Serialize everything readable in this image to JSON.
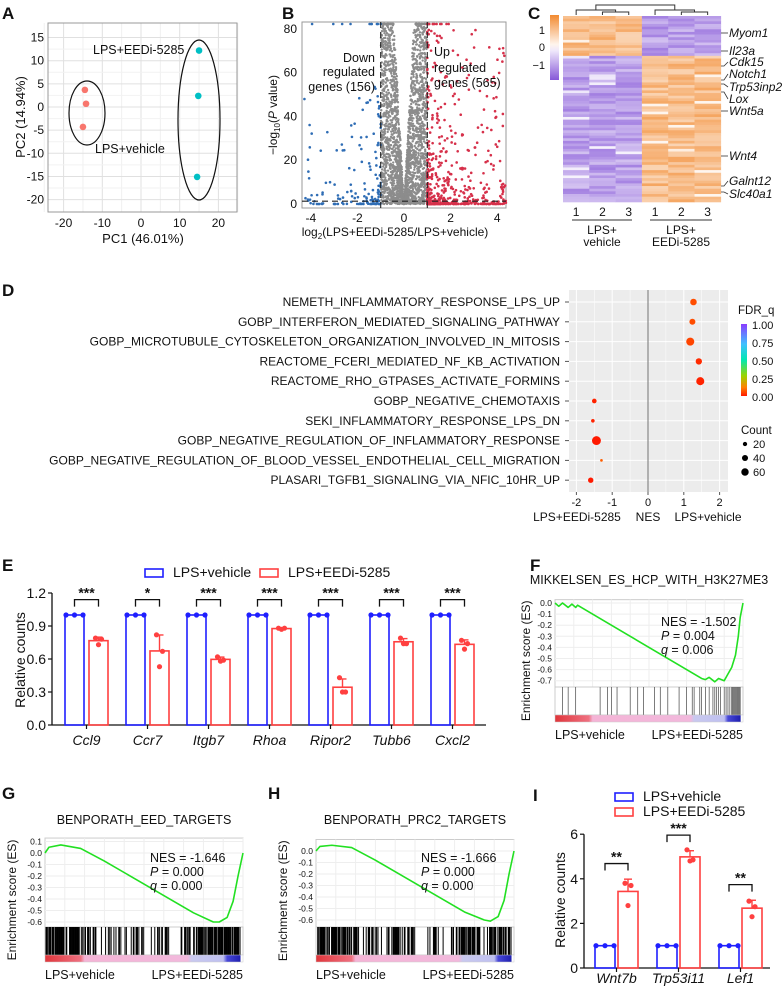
{
  "figure": {
    "panel_letters": [
      "A",
      "B",
      "C",
      "D",
      "E",
      "F",
      "G",
      "H",
      "I"
    ]
  },
  "chart_data": [
    {
      "panel": "A",
      "type": "scatter",
      "title": "",
      "xlabel": "PC1 (46.01%)",
      "ylabel": "PC2 (14.94%)",
      "xlim": [
        -25,
        25
      ],
      "ylim": [
        -22,
        18
      ],
      "xticks": [
        "-20",
        "-10",
        "0",
        "10",
        "20"
      ],
      "xtick_values": [
        -20,
        -10,
        0,
        10,
        20
      ],
      "yticks": [
        "15",
        "10",
        "5",
        "0",
        "-5",
        "-10",
        "-15",
        "-20"
      ],
      "ytick_values": [
        15,
        10,
        5,
        0,
        -5,
        -10,
        -15,
        -20
      ],
      "grid": true,
      "series": [
        {
          "name": "LPS+vehicle",
          "color": "#f8766d",
          "points": [
            [
              -14.5,
              3.7
            ],
            [
              -14.2,
              0.7
            ],
            [
              -15.0,
              -4.3
            ]
          ]
        },
        {
          "name": "LPS+EEDi-5285",
          "color": "#00bfc4",
          "points": [
            [
              15.0,
              12.2
            ],
            [
              14.8,
              2.4
            ],
            [
              14.5,
              -15.1
            ]
          ]
        }
      ]
    },
    {
      "panel": "B",
      "type": "scatter",
      "subtype": "volcano",
      "xlabel": {
        "pre": "log",
        "sub": "2",
        "post": "(LPS+EEDi-5285/LPS+vehicle)"
      },
      "ylabel": {
        "pre": "−log",
        "sub": "10",
        "open": "(",
        "p": "P",
        "post": " value)"
      },
      "xlim": [
        -4.4,
        4.4
      ],
      "ylim": [
        -2,
        83
      ],
      "xticks": [
        "-4",
        "-2",
        "0",
        "2",
        "4"
      ],
      "xtick_values": [
        -4,
        -2,
        0,
        2,
        4
      ],
      "yticks": [
        "0",
        "20",
        "40",
        "60",
        "80"
      ],
      "ytick_values": [
        0,
        20,
        40,
        60,
        80
      ],
      "fold_change_threshold": 1,
      "p_threshold_log10": 1.3,
      "down": {
        "lines": [
          "Down",
          "regulated",
          "genes (156)"
        ],
        "count": 156,
        "color": "#2f6db5"
      },
      "up": {
        "lines": [
          "Up",
          "regulated",
          "genes (565)"
        ],
        "count": 565,
        "color": "#d6304a"
      },
      "ns_color": "#8c8c8c"
    },
    {
      "panel": "C",
      "type": "heatmap",
      "colorbar_ticks": [
        "1",
        "0",
        "−1"
      ],
      "colorbar_values": [
        1,
        0,
        -1
      ],
      "columns": [
        "1",
        "2",
        "3",
        "1",
        "2",
        "3"
      ],
      "groups": [
        [
          "LPS+",
          "vehicle"
        ],
        [
          "LPS+",
          "EEDi-5285"
        ]
      ],
      "genes": [
        "Myom1",
        "Il23a",
        "Cdk15",
        "Notch1",
        "Trp53inp2",
        "Lox",
        "Wnt5a",
        "Wnt4",
        "Galnt12",
        "Slc40a1"
      ],
      "high_color": "#f28a30",
      "low_color": "#8657d8"
    },
    {
      "panel": "D",
      "type": "scatter",
      "subtype": "dotplot",
      "xlim": [
        -2.2,
        2.2
      ],
      "xticks": [
        "-2",
        "-1",
        "0",
        "1",
        "2"
      ],
      "xtick_values": [
        -2,
        -1,
        0,
        1,
        2
      ],
      "xlabel": {
        "left": "LPS+EEDi-5285",
        "center": "NES",
        "right": "LPS+vehicle"
      },
      "pathways": [
        {
          "name": "NEMETH_INFLAMMATORY_RESPONSE_LPS_UP",
          "nes": 1.27,
          "fdr_q": 0.06,
          "count": 30
        },
        {
          "name": "GOBP_INTERFERON_MEDIATED_SIGNALING_PATHWAY",
          "nes": 1.24,
          "fdr_q": 0.06,
          "count": 25
        },
        {
          "name": "GOBP_MICROTUBULE_CYTOSKELETON_ORGANIZATION_INVOLVED_IN_MITOSIS",
          "nes": 1.18,
          "fdr_q": 0.05,
          "count": 45
        },
        {
          "name": "REACTOME_FCERI_MEDIATED_NF_KB_ACTIVATION",
          "nes": 1.42,
          "fdr_q": 0.02,
          "count": 28
        },
        {
          "name": "REACTOME_RHO_GTPASES_ACTIVATE_FORMINS",
          "nes": 1.46,
          "fdr_q": 0.01,
          "count": 45
        },
        {
          "name": "GOBP_NEGATIVE_CHEMOTAXIS",
          "nes": -1.5,
          "fdr_q": 0.01,
          "count": 15
        },
        {
          "name": "SEKI_INFLAMMATORY_RESPONSE_LPS_DN",
          "nes": -1.54,
          "fdr_q": 0.01,
          "count": 9
        },
        {
          "name": "GOBP_NEGATIVE_REGULATION_OF_INFLAMMATORY_RESPONSE",
          "nes": -1.44,
          "fdr_q": 0.0,
          "count": 55
        },
        {
          "name": "GOBP_NEGATIVE_REGULATION_OF_BLOOD_VESSEL_ENDOTHELIAL_CELL_MIGRATION",
          "nes": -1.3,
          "fdr_q": 0.08,
          "count": 5
        },
        {
          "name": "PLASARI_TGFB1_SIGNALING_VIA_NFIC_10HR_UP",
          "nes": -1.6,
          "fdr_q": 0.0,
          "count": 20
        }
      ],
      "legend_color": {
        "title": "FDR_q",
        "ticks": [
          "1.00",
          "0.75",
          "0.50",
          "0.25",
          "0.00"
        ],
        "values": [
          1,
          0.75,
          0.5,
          0.25,
          0
        ]
      },
      "legend_size": {
        "title": "Count",
        "labels": [
          "20",
          "40",
          "60"
        ],
        "values": [
          20,
          40,
          60
        ]
      }
    },
    {
      "panel": "E",
      "type": "bar",
      "ylabel": "Relative counts",
      "ylim": [
        0,
        1.2
      ],
      "yticks": [
        "0.0",
        "0.3",
        "0.6",
        "0.9",
        "1.2"
      ],
      "ytick_values": [
        0,
        0.3,
        0.6,
        0.9,
        1.2
      ],
      "categories": [
        "Ccl9",
        "Ccr7",
        "Itgb7",
        "Rhoa",
        "Ripor2",
        "Tubb6",
        "Cxcl2"
      ],
      "significance": [
        "***",
        "*",
        "***",
        "***",
        "***",
        "***",
        "***"
      ],
      "series": [
        {
          "name": "LPS+vehicle",
          "color": "#1f1fff",
          "replicates": [
            [
              1,
              1,
              1
            ],
            [
              1,
              1,
              1
            ],
            [
              1,
              1,
              1
            ],
            [
              1,
              1,
              1
            ],
            [
              1,
              1,
              1
            ],
            [
              1,
              1,
              1
            ],
            [
              1,
              1,
              1
            ]
          ]
        },
        {
          "name": "LPS+EEDi-5285",
          "color": "#ff4040",
          "replicates": [
            [
              0.79,
              0.78,
              0.73
            ],
            [
              0.82,
              0.67,
              0.53
            ],
            [
              0.62,
              0.59,
              0.58
            ],
            [
              0.88,
              0.88,
              0.87
            ],
            [
              0.43,
              0.3,
              0.3
            ],
            [
              0.79,
              0.74,
              0.74
            ],
            [
              0.77,
              0.74,
              0.69
            ]
          ]
        }
      ]
    },
    {
      "panel": "F",
      "type": "line",
      "subtype": "gsea",
      "title": "MIKKELSEN_ES_HCP_WITH_H3K27ME3",
      "ylabel": "Enrichment score (ES)",
      "yticks": [
        "0.0",
        "-0.1",
        "-0.2",
        "-0.3",
        "-0.4",
        "-0.5",
        "-0.6",
        "-0.7"
      ],
      "ytick_values": [
        0,
        -0.1,
        -0.2,
        -0.3,
        -0.4,
        -0.5,
        -0.6,
        -0.7
      ],
      "ylim": [
        -0.75,
        0.03
      ],
      "nes_text": "NES = -1.502",
      "p_symbol": "P",
      "p_text": " = 0.004",
      "q_symbol": "q",
      "q_text": " = 0.006",
      "left_label": "LPS+vehicle",
      "right_label": "LPS+EEDi-5285",
      "es_curve": [
        [
          0,
          0
        ],
        [
          0.02,
          -0.03
        ],
        [
          0.04,
          0
        ],
        [
          0.07,
          -0.04
        ],
        [
          0.09,
          -0.01
        ],
        [
          0.11,
          -0.04
        ],
        [
          0.12,
          -0.02
        ],
        [
          0.14,
          -0.04
        ],
        [
          0.78,
          -0.68
        ],
        [
          0.8,
          -0.69
        ],
        [
          0.82,
          -0.67
        ],
        [
          0.85,
          -0.71
        ],
        [
          0.87,
          -0.68
        ],
        [
          0.9,
          -0.7
        ],
        [
          0.92,
          -0.64
        ],
        [
          0.94,
          -0.58
        ],
        [
          0.96,
          -0.47
        ],
        [
          0.975,
          -0.3
        ],
        [
          0.985,
          -0.13
        ],
        [
          1,
          0
        ]
      ],
      "hits": [
        0.04,
        0.07,
        0.11,
        0.24,
        0.28,
        0.3,
        0.33,
        0.4,
        0.44,
        0.47,
        0.53,
        0.56,
        0.6,
        0.66,
        0.7,
        0.73,
        0.74,
        0.77,
        0.78,
        0.8,
        0.82,
        0.84,
        0.85,
        0.86,
        0.87,
        0.88,
        0.9,
        0.91,
        0.92,
        0.93,
        0.94,
        0.945,
        0.95,
        0.955,
        0.96,
        0.965,
        0.97,
        0.975,
        0.98,
        0.985
      ]
    },
    {
      "panel": "G",
      "type": "line",
      "subtype": "gsea",
      "title": "BENPORATH_EED_TARGETS",
      "ylabel": "Enrichment score (ES)",
      "yticks": [
        "0.1",
        "0.0",
        "-0.1",
        "-0.2",
        "-0.3",
        "-0.4",
        "-0.5",
        "-0.6"
      ],
      "ytick_values": [
        0.1,
        0,
        -0.1,
        -0.2,
        -0.3,
        -0.4,
        -0.5,
        -0.6
      ],
      "ylim": [
        -0.64,
        0.13
      ],
      "nes_text": "NES = -1.646",
      "p_symbol": "P",
      "p_text": " = 0.000",
      "q_symbol": "q",
      "q_text": " = 0.000",
      "left_label": "LPS+vehicle",
      "right_label": "LPS+EEDi-5285",
      "es_curve": [
        [
          0,
          0
        ],
        [
          0.02,
          0.05
        ],
        [
          0.08,
          0.07
        ],
        [
          0.18,
          0.04
        ],
        [
          0.3,
          -0.07
        ],
        [
          0.45,
          -0.22
        ],
        [
          0.6,
          -0.37
        ],
        [
          0.75,
          -0.52
        ],
        [
          0.85,
          -0.6
        ],
        [
          0.88,
          -0.6
        ],
        [
          0.92,
          -0.56
        ],
        [
          0.95,
          -0.42
        ],
        [
          0.975,
          -0.2
        ],
        [
          1,
          0
        ]
      ]
    },
    {
      "panel": "H",
      "type": "line",
      "subtype": "gsea",
      "title": "BENPORATH_PRC2_TARGETS",
      "ylabel": "Enrichment score (ES)",
      "yticks": [
        "0.0",
        "-0.1",
        "-0.2",
        "-0.3",
        "-0.4",
        "-0.5",
        "-0.6"
      ],
      "ytick_values": [
        0,
        -0.1,
        -0.2,
        -0.3,
        -0.4,
        -0.5,
        -0.6
      ],
      "ylim": [
        -0.64,
        0.1
      ],
      "nes_text": "NES = -1.666",
      "p_symbol": "P",
      "p_text": " = 0.000",
      "q_symbol": "q",
      "q_text": " = 0.000",
      "left_label": "LPS+vehicle",
      "right_label": "LPS+EEDi-5285",
      "es_curve": [
        [
          0,
          0
        ],
        [
          0.02,
          0.04
        ],
        [
          0.08,
          0.05
        ],
        [
          0.18,
          0.03
        ],
        [
          0.3,
          -0.08
        ],
        [
          0.45,
          -0.23
        ],
        [
          0.6,
          -0.38
        ],
        [
          0.75,
          -0.53
        ],
        [
          0.85,
          -0.6
        ],
        [
          0.88,
          -0.61
        ],
        [
          0.92,
          -0.57
        ],
        [
          0.95,
          -0.43
        ],
        [
          0.975,
          -0.2
        ],
        [
          1,
          0
        ]
      ]
    },
    {
      "panel": "I",
      "type": "bar",
      "ylabel": "Relative counts",
      "ylim": [
        0,
        6
      ],
      "yticks": [
        "0",
        "2",
        "4",
        "6"
      ],
      "ytick_values": [
        0,
        2,
        4,
        6
      ],
      "categories": [
        "Wnt7b",
        "Trp53i11",
        "Lef1"
      ],
      "significance": [
        "**",
        "***",
        "**"
      ],
      "series": [
        {
          "name": "LPS+vehicle",
          "color": "#1f1fff",
          "replicates": [
            [
              1,
              1,
              1
            ],
            [
              1,
              1,
              1
            ],
            [
              1,
              1,
              1
            ]
          ]
        },
        {
          "name": "LPS+EEDi-5285",
          "color": "#ff4040",
          "replicates": [
            [
              3.8,
              3.7,
              2.8
            ],
            [
              5.3,
              4.85,
              4.8
            ],
            [
              3.0,
              2.75,
              2.3
            ]
          ]
        }
      ]
    }
  ]
}
